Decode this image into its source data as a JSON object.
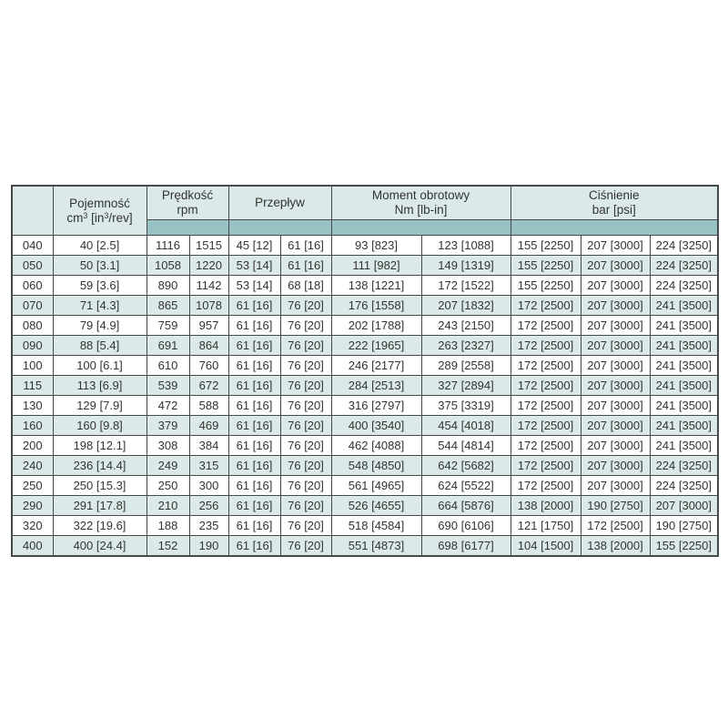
{
  "page": {
    "background": "#ffffff"
  },
  "table": {
    "colors": {
      "header_bg": "#dbeae8",
      "band_bg": "#97c1c3",
      "alt_row_bg": "#dbeae8",
      "row_bg": "#ffffff",
      "border": "#46494c",
      "text": "#333333"
    },
    "header": {
      "code": "",
      "capacity": {
        "title": "Pojemność",
        "unit_pre": "cm",
        "sup1": "3",
        "unit_mid": " [in",
        "sup2": "3",
        "unit_post": "/rev]"
      },
      "speed": {
        "title": "Prędkość",
        "unit": "rpm"
      },
      "flow": {
        "title": "Przepływ"
      },
      "torque": {
        "title": "Moment obrotowy",
        "unit": "Nm [lb-in]"
      },
      "pressure": {
        "title": "Ciśnienie",
        "unit": "bar [psi]"
      }
    },
    "rows": [
      [
        "040",
        "40 [2.5]",
        "1116",
        "1515",
        "45 [12]",
        "61 [16]",
        "93 [823]",
        "123 [1088]",
        "155 [2250]",
        "207 [3000]",
        "224 [3250]"
      ],
      [
        "050",
        "50 [3.1]",
        "1058",
        "1220",
        "53 [14]",
        "61 [16]",
        "111 [982]",
        "149 [1319]",
        "155 [2250]",
        "207 [3000]",
        "224 [3250]"
      ],
      [
        "060",
        "59 [3.6]",
        "890",
        "1142",
        "53 [14]",
        "68 [18]",
        "138 [1221]",
        "172 [1522]",
        "155 [2250]",
        "207 [3000]",
        "224 [3250]"
      ],
      [
        "070",
        "71 [4.3]",
        "865",
        "1078",
        "61 [16]",
        "76 [20]",
        "176 [1558]",
        "207 [1832]",
        "172 [2500]",
        "207 [3000]",
        "241 [3500]"
      ],
      [
        "080",
        "79 [4.9]",
        "759",
        "957",
        "61 [16]",
        "76 [20]",
        "202 [1788]",
        "243 [2150]",
        "172 [2500]",
        "207 [3000]",
        "241 [3500]"
      ],
      [
        "090",
        "88 [5.4]",
        "691",
        "864",
        "61 [16]",
        "76 [20]",
        "222 [1965]",
        "263 [2327]",
        "172 [2500]",
        "207 [3000]",
        "241 [3500]"
      ],
      [
        "100",
        "100 [6.1]",
        "610",
        "760",
        "61 [16]",
        "76 [20]",
        "246 [2177]",
        "289 [2558]",
        "172 [2500]",
        "207 [3000]",
        "241 [3500]"
      ],
      [
        "115",
        "113 [6.9]",
        "539",
        "672",
        "61 [16]",
        "76 [20]",
        "284 [2513]",
        "327 [2894]",
        "172 [2500]",
        "207 [3000]",
        "241 [3500]"
      ],
      [
        "130",
        "129 [7.9]",
        "472",
        "588",
        "61 [16]",
        "76 [20]",
        "316 [2797]",
        "375 [3319]",
        "172 [2500]",
        "207 [3000]",
        "241 [3500]"
      ],
      [
        "160",
        "160 [9.8]",
        "379",
        "469",
        "61 [16]",
        "76 [20]",
        "400 [3540]",
        "454 [4018]",
        "172 [2500]",
        "207 [3000]",
        "241 [3500]"
      ],
      [
        "200",
        "198 [12.1]",
        "308",
        "384",
        "61 [16]",
        "76 [20]",
        "462 [4088]",
        "544 [4814]",
        "172 [2500]",
        "207 [3000]",
        "241 [3500]"
      ],
      [
        "240",
        "236 [14.4]",
        "249",
        "315",
        "61 [16]",
        "76 [20]",
        "548 [4850]",
        "642 [5682]",
        "172 [2500]",
        "207 [3000]",
        "224 [3250]"
      ],
      [
        "250",
        "250 [15.3]",
        "250",
        "300",
        "61 [16]",
        "76 [20]",
        "561 [4965]",
        "624 [5522]",
        "172 [2500]",
        "207 [3000]",
        "224 [3250]"
      ],
      [
        "290",
        "291 [17.8]",
        "210",
        "256",
        "61 [16]",
        "76 [20]",
        "526 [4655]",
        "664 [5876]",
        "138 [2000]",
        "190 [2750]",
        "207 [3000]"
      ],
      [
        "320",
        "322 [19.6]",
        "188",
        "235",
        "61 [16]",
        "76 [20]",
        "518 [4584]",
        "690 [6106]",
        "121 [1750]",
        "172 [2500]",
        "190 [2750]"
      ],
      [
        "400",
        "400 [24.4]",
        "152",
        "190",
        "61 [16]",
        "76 [20]",
        "551 [4873]",
        "698 [6177]",
        "104 [1500]",
        "138 [2000]",
        "155 [2250]"
      ]
    ]
  }
}
